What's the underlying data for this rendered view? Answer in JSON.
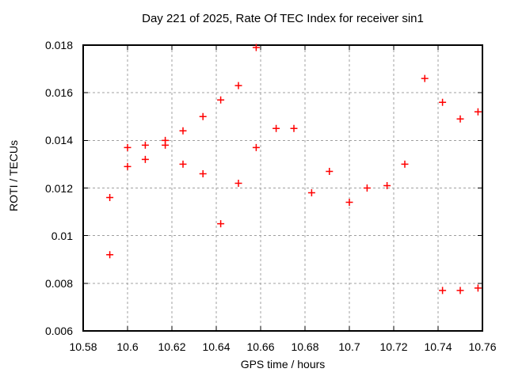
{
  "window": {
    "background_color": "#ffffff"
  },
  "chart_data": {
    "type": "scatter",
    "title": "Day 221 of 2025, Rate Of TEC Index for receiver sin1",
    "xlabel": "GPS time / hours",
    "ylabel": "ROTI / TECUs",
    "xlim": [
      10.58,
      10.76
    ],
    "ylim": [
      0.006,
      0.018
    ],
    "xticks": [
      10.58,
      10.6,
      10.62,
      10.64,
      10.66,
      10.68,
      10.7,
      10.72,
      10.74,
      10.76
    ],
    "xtick_labels": [
      "10.58",
      "10.6",
      "10.62",
      "10.64",
      "10.66",
      "10.68",
      "10.7",
      "10.72",
      "10.74",
      "10.76"
    ],
    "yticks": [
      0.006,
      0.008,
      0.01,
      0.012,
      0.014,
      0.016,
      0.018
    ],
    "ytick_labels": [
      "0.006",
      "0.008",
      "0.01",
      "0.012",
      "0.014",
      "0.016",
      "0.018"
    ],
    "grid": true,
    "legend": "none",
    "marker": {
      "shape": "plus",
      "color": "#ff0000",
      "size": 9
    },
    "colors": {
      "border": "#000000",
      "grid": "#a0a0a0",
      "text": "#000000",
      "marker": "#ff0000"
    },
    "series": [
      {
        "name": "ROTI",
        "points": [
          [
            10.592,
            0.0116
          ],
          [
            10.592,
            0.0092
          ],
          [
            10.6,
            0.0137
          ],
          [
            10.6,
            0.0129
          ],
          [
            10.608,
            0.0138
          ],
          [
            10.608,
            0.0132
          ],
          [
            10.617,
            0.014
          ],
          [
            10.617,
            0.0138
          ],
          [
            10.625,
            0.0144
          ],
          [
            10.625,
            0.013
          ],
          [
            10.634,
            0.015
          ],
          [
            10.634,
            0.0126
          ],
          [
            10.642,
            0.0157
          ],
          [
            10.642,
            0.0105
          ],
          [
            10.65,
            0.0163
          ],
          [
            10.65,
            0.0122
          ],
          [
            10.658,
            0.0179
          ],
          [
            10.658,
            0.0137
          ],
          [
            10.667,
            0.0145
          ],
          [
            10.675,
            0.0145
          ],
          [
            10.683,
            0.0118
          ],
          [
            10.691,
            0.0127
          ],
          [
            10.7,
            0.0114
          ],
          [
            10.708,
            0.012
          ],
          [
            10.717,
            0.0121
          ],
          [
            10.725,
            0.013
          ],
          [
            10.734,
            0.0166
          ],
          [
            10.742,
            0.0156
          ],
          [
            10.742,
            0.0077
          ],
          [
            10.75,
            0.0149
          ],
          [
            10.75,
            0.0077
          ],
          [
            10.758,
            0.0152
          ],
          [
            10.758,
            0.0078
          ]
        ]
      }
    ]
  }
}
